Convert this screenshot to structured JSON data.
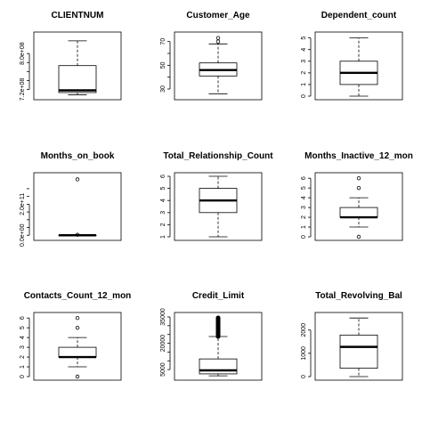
{
  "chart_data": [
    {
      "type": "box",
      "title": "CLIENTNUM",
      "ylim": [
        705000000,
        840000000
      ],
      "ticks": [
        720000000,
        800000000
      ],
      "tick_labels": [
        "7.2e+08",
        "8.0e+08"
      ],
      "minor_ticks": [
        740000000,
        760000000,
        780000000
      ],
      "box": {
        "min": 708100000,
        "q1": 713000000,
        "median": 717900000,
        "q3": 773100000,
        "max": 828300000
      },
      "outliers": []
    },
    {
      "type": "box",
      "title": "Customer_Age",
      "ylim": [
        24,
        75
      ],
      "ticks": [
        30,
        40,
        50,
        60,
        70
      ],
      "tick_labels": [
        "30",
        "",
        "50",
        "",
        "70"
      ],
      "minor_ticks": [],
      "box": {
        "min": 26,
        "q1": 41,
        "median": 46,
        "q3": 52,
        "max": 68
      },
      "outliers": [
        70,
        73
      ]
    },
    {
      "type": "box",
      "title": "Dependent_count",
      "ylim": [
        0,
        5.2
      ],
      "ticks": [
        0,
        1,
        2,
        3,
        4,
        5
      ],
      "tick_labels": [
        "0",
        "1",
        "2",
        "3",
        "4",
        "5"
      ],
      "minor_ticks": [],
      "box": {
        "min": 0,
        "q1": 1,
        "median": 2,
        "q3": 3,
        "max": 5
      },
      "outliers": []
    },
    {
      "type": "box",
      "title": "Months_on_book",
      "ylim": [
        -10000000000,
        380000000000
      ],
      "ticks": [
        0,
        200000000000
      ],
      "tick_labels": [
        "0.0e+00",
        "2.0e+11"
      ],
      "minor_ticks": [
        50000000000,
        100000000000,
        150000000000,
        250000000000,
        300000000000
      ],
      "box": {
        "min": 0,
        "q1": 0,
        "median": 0,
        "q3": 0,
        "max": 0
      },
      "outliers": [
        3000000000,
        360000000000
      ]
    },
    {
      "type": "box",
      "title": "Total_Relationship_Count",
      "ylim": [
        1,
        6
      ],
      "ticks": [
        1,
        2,
        3,
        4,
        5,
        6
      ],
      "tick_labels": [
        "1",
        "2",
        "3",
        "4",
        "5",
        "6"
      ],
      "minor_ticks": [],
      "box": {
        "min": 1,
        "q1": 3,
        "median": 4,
        "q3": 5,
        "max": 6
      },
      "outliers": []
    },
    {
      "type": "box",
      "title": "Months_Inactive_12_mon",
      "ylim": [
        0,
        6.2
      ],
      "ticks": [
        0,
        1,
        2,
        3,
        4,
        5,
        6
      ],
      "tick_labels": [
        "0",
        "1",
        "2",
        "3",
        "4",
        "5",
        "6"
      ],
      "minor_ticks": [],
      "box": {
        "min": 1,
        "q1": 2,
        "median": 2,
        "q3": 3,
        "max": 4
      },
      "outliers": [
        0,
        5,
        6
      ]
    },
    {
      "type": "box",
      "title": "Contacts_Count_12_mon",
      "ylim": [
        0,
        6.2
      ],
      "ticks": [
        0,
        1,
        2,
        3,
        4,
        5,
        6
      ],
      "tick_labels": [
        "0",
        "1",
        "2",
        "3",
        "4",
        "5",
        "6"
      ],
      "minor_ticks": [],
      "box": {
        "min": 1,
        "q1": 2,
        "median": 2,
        "q3": 3,
        "max": 4
      },
      "outliers": [
        0,
        5,
        6
      ]
    },
    {
      "type": "box",
      "title": "Credit_Limit",
      "ylim": [
        1000,
        35500
      ],
      "ticks": [
        5000,
        10000,
        15000,
        20000,
        25000,
        30000,
        35000
      ],
      "tick_labels": [
        "5000",
        "",
        "",
        "20000",
        "",
        "",
        "35000"
      ],
      "minor_ticks": [],
      "box": {
        "min": 1438,
        "q1": 2555,
        "median": 4549,
        "q3": 11068,
        "max": 23836
      },
      "outlier_band": [
        23836,
        34516
      ],
      "outliers": []
    },
    {
      "type": "box",
      "title": "Total_Revolving_Bal",
      "ylim": [
        0,
        2600
      ],
      "ticks": [
        0,
        1000,
        2000
      ],
      "tick_labels": [
        "0",
        "1000",
        "2000"
      ],
      "minor_ticks": [],
      "box": {
        "min": 0,
        "q1": 359,
        "median": 1276,
        "q3": 1784,
        "max": 2517
      },
      "outliers": []
    }
  ]
}
